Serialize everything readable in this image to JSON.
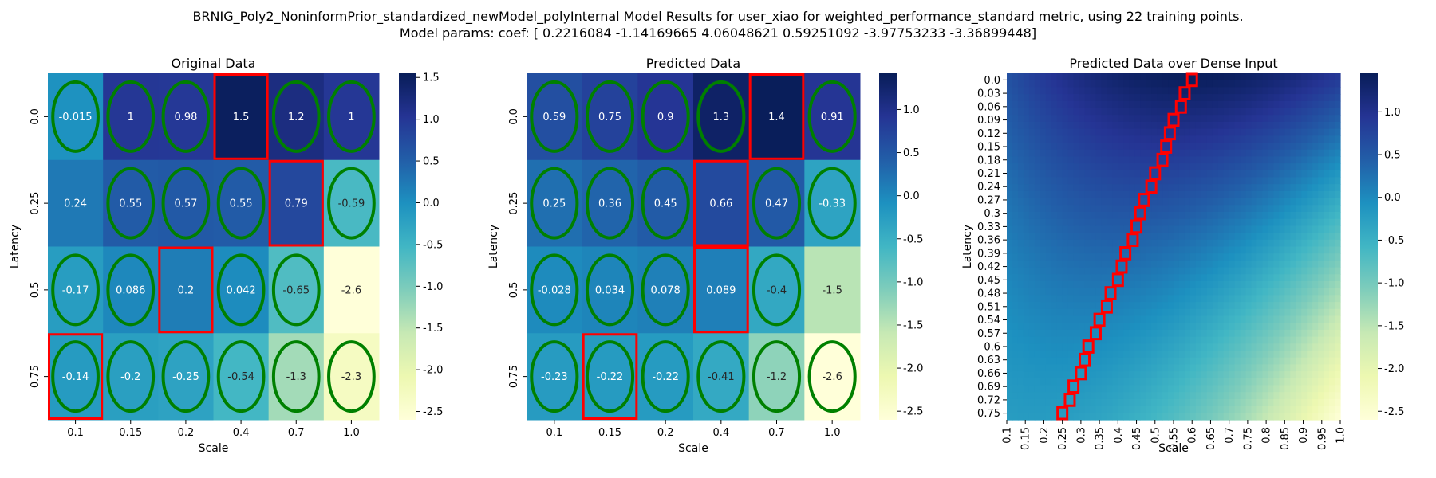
{
  "figure": {
    "title_line1": "BRNIG_Poly2_NoninformPrior_standardized_newModel_polyInternal Model Results for user_xiao for weighted_performance_standard metric, using 22 training points.",
    "title_line2": "Model params: coef: [ 0.2216084  -1.14169665  4.06048621  0.59251092 -3.97753233 -3.36899448]"
  },
  "colors": {
    "colormap": [
      "#ffffd9",
      "#edf8b1",
      "#c7e9b4",
      "#7fcdbb",
      "#41b6c4",
      "#1d91c0",
      "#225ea8",
      "#253494",
      "#081d58"
    ],
    "ellipse_stroke": "#008000",
    "box_stroke": "#ff0000",
    "light_text": "#ffffff",
    "dark_text": "#262626"
  },
  "chart_data": [
    {
      "type": "heatmap",
      "title": "Original Data",
      "xlabel": "Scale",
      "ylabel": "Latency",
      "x": [
        "0.1",
        "0.15",
        "0.2",
        "0.4",
        "0.7",
        "1.0"
      ],
      "y": [
        "0.0",
        "0.25",
        "0.5",
        "0.75"
      ],
      "values": [
        [
          -0.015,
          1,
          0.98,
          1.5,
          1.2,
          1
        ],
        [
          0.24,
          0.55,
          0.57,
          0.55,
          0.79,
          -0.59
        ],
        [
          -0.17,
          0.086,
          0.2,
          0.042,
          -0.65,
          -2.6
        ],
        [
          -0.14,
          -0.2,
          -0.25,
          -0.54,
          -1.3,
          -2.3
        ]
      ],
      "labels": [
        [
          "-0.015",
          "1",
          "0.98",
          "1.5",
          "1.2",
          "1"
        ],
        [
          "0.24",
          "0.55",
          "0.57",
          "0.55",
          "0.79",
          "-0.59"
        ],
        [
          "-0.17",
          "0.086",
          "0.2",
          "0.042",
          "-0.65",
          "-2.6"
        ],
        [
          "-0.14",
          "-0.2",
          "-0.25",
          "-0.54",
          "-1.3",
          "-2.3"
        ]
      ],
      "vmin": -2.6,
      "vmax": 1.55,
      "colorbar_ticks": [
        "1.5",
        "1.0",
        "0.5",
        "0.0",
        "-0.5",
        "-1.0",
        "-1.5",
        "-2.0",
        "-2.5"
      ],
      "ellipses": [
        [
          0,
          0
        ],
        [
          0,
          1
        ],
        [
          0,
          2
        ],
        [
          0,
          4
        ],
        [
          0,
          5
        ],
        [
          1,
          1
        ],
        [
          1,
          2
        ],
        [
          1,
          3
        ],
        [
          1,
          5
        ],
        [
          2,
          0
        ],
        [
          2,
          1
        ],
        [
          2,
          3
        ],
        [
          2,
          4
        ],
        [
          3,
          0
        ],
        [
          3,
          1
        ],
        [
          3,
          2
        ],
        [
          3,
          3
        ],
        [
          3,
          4
        ],
        [
          3,
          5
        ]
      ],
      "boxes": [
        [
          0,
          3
        ],
        [
          1,
          4
        ],
        [
          2,
          2
        ],
        [
          3,
          0
        ]
      ]
    },
    {
      "type": "heatmap",
      "title": "Predicted Data",
      "xlabel": "Scale",
      "ylabel": "Latency",
      "x": [
        "0.1",
        "0.15",
        "0.2",
        "0.4",
        "0.7",
        "1.0"
      ],
      "y": [
        "0.0",
        "0.25",
        "0.5",
        "0.75"
      ],
      "values": [
        [
          0.59,
          0.75,
          0.9,
          1.3,
          1.4,
          0.91
        ],
        [
          0.25,
          0.36,
          0.45,
          0.66,
          0.47,
          -0.33
        ],
        [
          -0.028,
          0.034,
          0.078,
          0.089,
          -0.4,
          -1.5
        ],
        [
          -0.23,
          -0.22,
          -0.22,
          -0.41,
          -1.2,
          -2.6
        ]
      ],
      "labels": [
        [
          "0.59",
          "0.75",
          "0.9",
          "1.3",
          "1.4",
          "0.91"
        ],
        [
          "0.25",
          "0.36",
          "0.45",
          "0.66",
          "0.47",
          "-0.33"
        ],
        [
          "-0.028",
          "0.034",
          "0.078",
          "0.089",
          "-0.4",
          "-1.5"
        ],
        [
          "-0.23",
          "-0.22",
          "-0.22",
          "-0.41",
          "-1.2",
          "-2.6"
        ]
      ],
      "vmin": -2.6,
      "vmax": 1.42,
      "colorbar_ticks": [
        "1.0",
        "0.5",
        "0.0",
        "-0.5",
        "-1.0",
        "-1.5",
        "-2.0",
        "-2.5"
      ],
      "ellipses": [
        [
          0,
          0
        ],
        [
          0,
          1
        ],
        [
          0,
          2
        ],
        [
          0,
          3
        ],
        [
          0,
          5
        ],
        [
          1,
          0
        ],
        [
          1,
          1
        ],
        [
          1,
          2
        ],
        [
          1,
          4
        ],
        [
          1,
          5
        ],
        [
          2,
          0
        ],
        [
          2,
          1
        ],
        [
          2,
          2
        ],
        [
          2,
          4
        ],
        [
          3,
          0
        ],
        [
          3,
          1
        ],
        [
          3,
          2
        ],
        [
          3,
          3
        ],
        [
          3,
          4
        ],
        [
          3,
          5
        ]
      ],
      "boxes": [
        [
          0,
          4
        ],
        [
          1,
          3
        ],
        [
          2,
          3
        ],
        [
          3,
          1
        ]
      ]
    },
    {
      "type": "heatmap",
      "title": "Predicted Data over Dense Input",
      "xlabel": "Scale",
      "ylabel": "Latency",
      "x_range": [
        0.1,
        1.0
      ],
      "y_range": [
        0.0,
        0.75
      ],
      "x_ticks": [
        "0.1",
        "0.15",
        "0.2",
        "0.25",
        "0.3",
        "0.35",
        "0.4",
        "0.45",
        "0.5",
        "0.55",
        "0.6",
        "0.65",
        "0.7",
        "0.75",
        "0.8",
        "0.85",
        "0.9",
        "0.95",
        "1.0"
      ],
      "y_ticks": [
        "0.0",
        "0.03",
        "0.06",
        "0.09",
        "0.12",
        "0.15",
        "0.18",
        "0.21",
        "0.24",
        "0.27",
        "0.3",
        "0.33",
        "0.36",
        "0.39",
        "0.42",
        "0.45",
        "0.48",
        "0.51",
        "0.54",
        "0.57",
        "0.6",
        "0.63",
        "0.66",
        "0.69",
        "0.72",
        "0.75"
      ],
      "coef": [
        0.2216084,
        -1.14169665,
        4.06048621,
        0.59251092,
        -3.97753233,
        -3.36899448
      ],
      "vmin": -2.6,
      "vmax": 1.45,
      "colorbar_ticks": [
        "1.0",
        "0.5",
        "0.0",
        "-0.5",
        "-1.0",
        "-1.5",
        "-2.0",
        "-2.5"
      ],
      "optimal_path": [
        [
          0.0,
          0.6
        ],
        [
          0.03,
          0.58
        ],
        [
          0.06,
          0.57
        ],
        [
          0.09,
          0.55
        ],
        [
          0.12,
          0.54
        ],
        [
          0.15,
          0.53
        ],
        [
          0.18,
          0.52
        ],
        [
          0.21,
          0.5
        ],
        [
          0.24,
          0.49
        ],
        [
          0.27,
          0.47
        ],
        [
          0.3,
          0.46
        ],
        [
          0.33,
          0.45
        ],
        [
          0.36,
          0.44
        ],
        [
          0.39,
          0.42
        ],
        [
          0.42,
          0.41
        ],
        [
          0.45,
          0.4
        ],
        [
          0.48,
          0.38
        ],
        [
          0.51,
          0.37
        ],
        [
          0.54,
          0.35
        ],
        [
          0.57,
          0.34
        ],
        [
          0.6,
          0.32
        ],
        [
          0.63,
          0.31
        ],
        [
          0.66,
          0.3
        ],
        [
          0.69,
          0.28
        ],
        [
          0.72,
          0.27
        ],
        [
          0.75,
          0.25
        ]
      ]
    }
  ]
}
